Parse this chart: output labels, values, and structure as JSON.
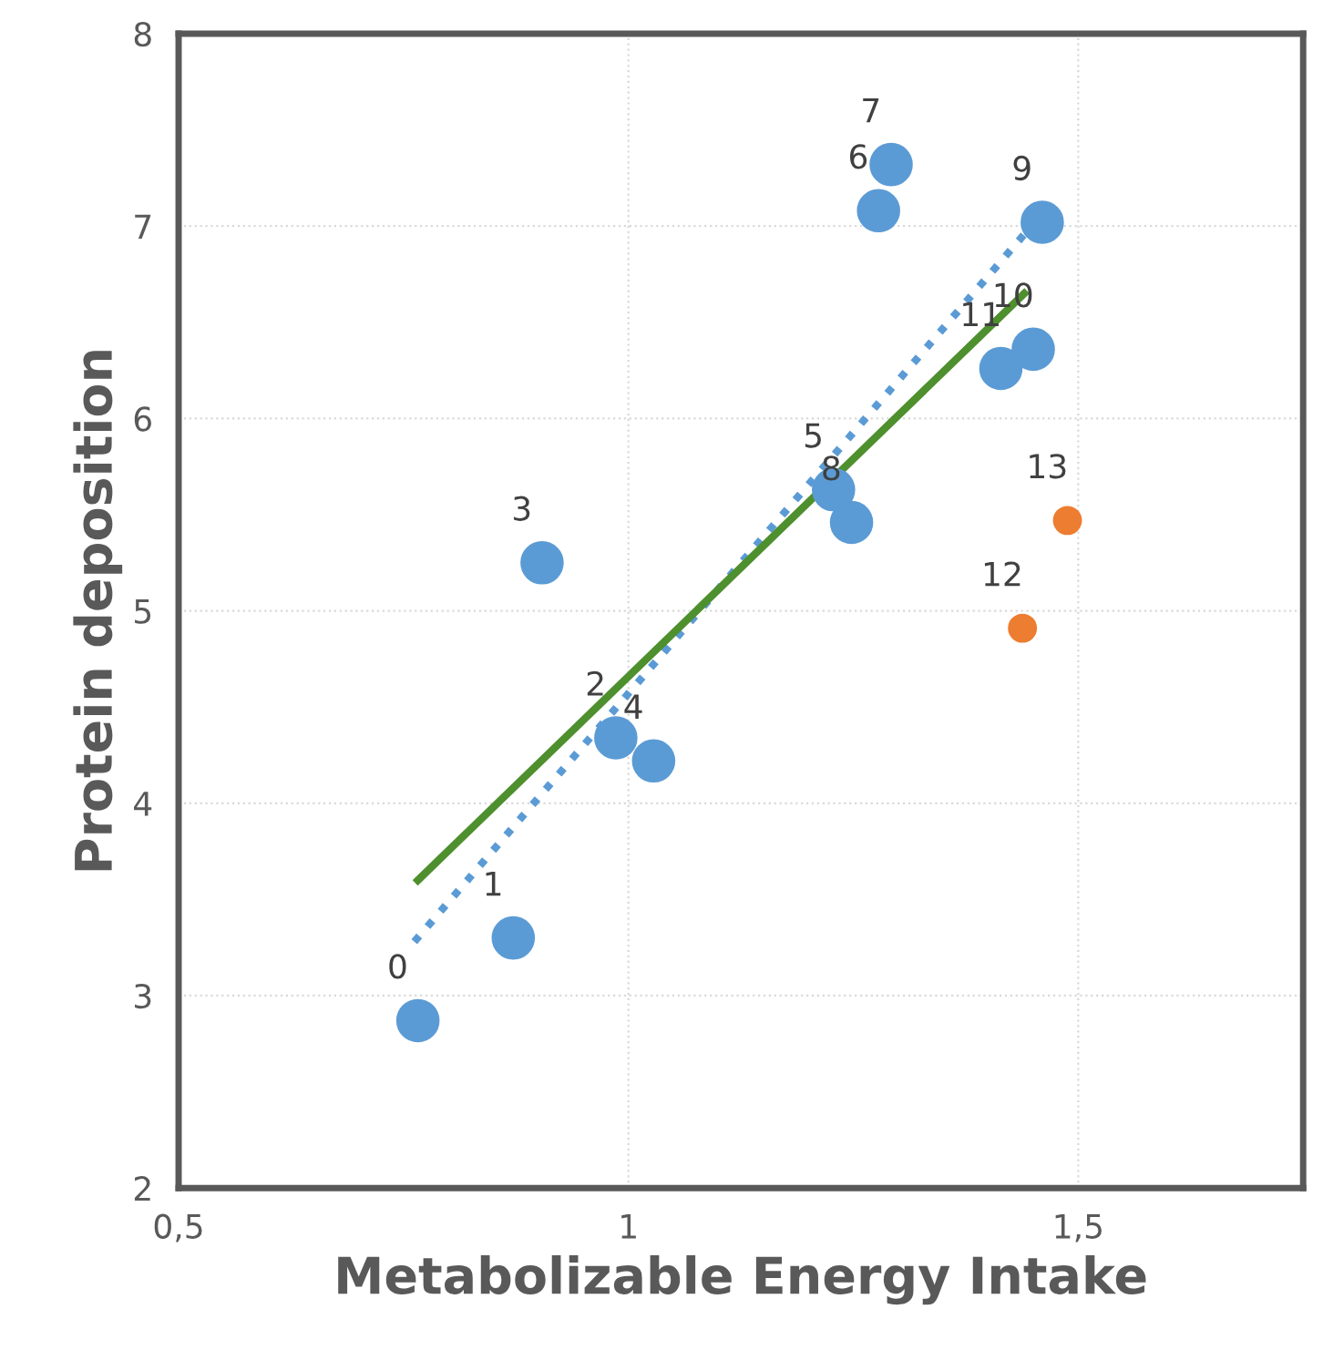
{
  "chart_data": {
    "type": "scatter",
    "xlabel": "Metabolizable Energy Intake",
    "ylabel": "Protein deposition",
    "xlim": [
      0.5,
      1.75
    ],
    "ylim": [
      2,
      8
    ],
    "xticks": [
      {
        "value": 0.5,
        "label": "0,5"
      },
      1,
      {
        "value": 1.5,
        "label": "1,5"
      }
    ],
    "yticks": [
      2,
      3,
      4,
      5,
      6,
      7,
      8
    ],
    "grid": true,
    "series": [
      {
        "marker": "circle",
        "color": "#5b9bd5",
        "x": [
          0.766,
          0.872,
          0.986,
          0.904,
          1.028,
          1.228,
          1.278,
          1.292,
          1.248,
          1.46,
          1.45,
          1.414
        ],
        "values": [
          2.87,
          3.3,
          4.34,
          5.25,
          4.22,
          5.63,
          7.08,
          7.32,
          5.46,
          7.02,
          6.36,
          6.26
        ]
      },
      {
        "marker": "circle",
        "color": "#ed7d31",
        "x": [
          1.438,
          1.488
        ],
        "values": [
          4.91,
          5.47
        ]
      },
      {
        "type": "line",
        "color": "#5b9bd5",
        "line_style": "dotted",
        "x": [
          0.762,
          1.446
        ],
        "values": [
          3.28,
          6.99
        ]
      },
      {
        "type": "line",
        "color": "#4e8f2e",
        "line_style": "solid",
        "x": [
          0.766,
          1.44
        ],
        "values": [
          3.6,
          6.65
        ]
      }
    ],
    "annotations": [
      {
        "text": "0",
        "x": 0.766,
        "y": 2.87
      },
      {
        "text": "1",
        "x": 0.872,
        "y": 3.3
      },
      {
        "text": "2",
        "x": 0.986,
        "y": 4.34
      },
      {
        "text": "3",
        "x": 0.904,
        "y": 5.25
      },
      {
        "text": "4",
        "x": 1.028,
        "y": 4.22
      },
      {
        "text": "5",
        "x": 1.228,
        "y": 5.63
      },
      {
        "text": "6",
        "x": 1.278,
        "y": 7.08
      },
      {
        "text": "7",
        "x": 1.292,
        "y": 7.32
      },
      {
        "text": "8",
        "x": 1.248,
        "y": 5.46
      },
      {
        "text": "9",
        "x": 1.46,
        "y": 7.02
      },
      {
        "text": "10",
        "x": 1.45,
        "y": 6.36
      },
      {
        "text": "11",
        "x": 1.414,
        "y": 6.26
      },
      {
        "text": "12",
        "x": 1.438,
        "y": 4.91
      },
      {
        "text": "13",
        "x": 1.488,
        "y": 5.47
      }
    ]
  }
}
